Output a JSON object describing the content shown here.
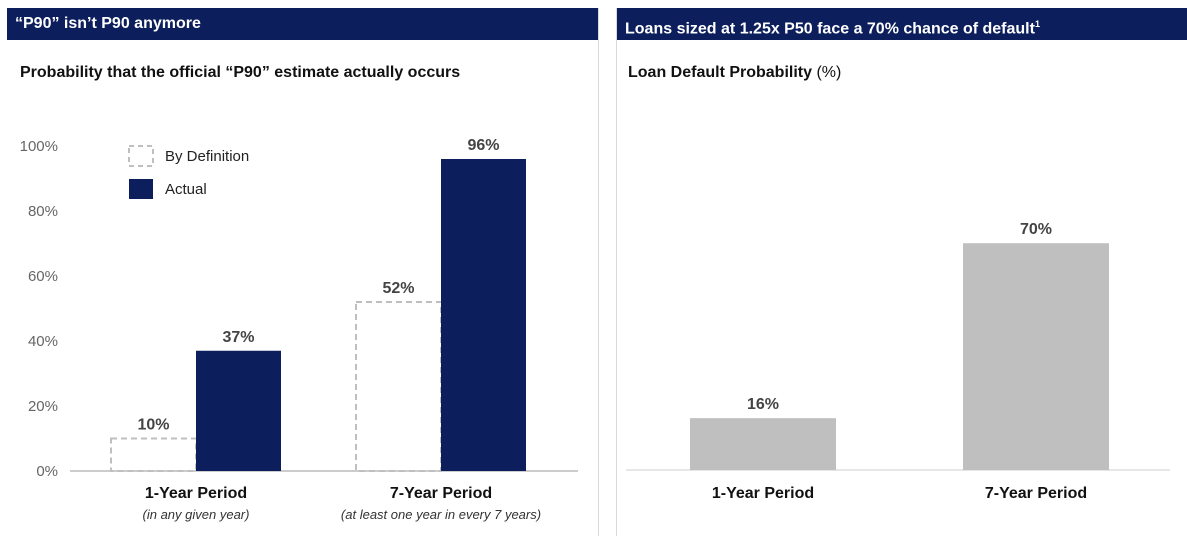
{
  "left_panel": {
    "header": "“P90” isn’t P90 anymore",
    "subtitle": "Probability that the official “P90” estimate actually occurs"
  },
  "right_panel": {
    "header": "Loans sized at 1.25x P50 face a 70% chance of default",
    "header_footnote": "1",
    "subtitle": "Loan Default Probability",
    "subtitle_unit": "(%)"
  },
  "colors": {
    "navy": "#0c1f5c",
    "grey_bar": "#bfbfbf",
    "dashed_outline": "#bfbfbf"
  },
  "chart_data": [
    {
      "type": "bar",
      "categories": [
        "1-Year Period",
        "7-Year Period"
      ],
      "category_notes": [
        "(in any given year)",
        "(at least one year in every 7 years)"
      ],
      "series": [
        {
          "name": "By Definition",
          "values": [
            10,
            52
          ],
          "style": "dashed-outline"
        },
        {
          "name": "Actual",
          "values": [
            37,
            96
          ],
          "style": "solid-navy"
        }
      ],
      "data_labels": [
        [
          "10%",
          "52%"
        ],
        [
          "37%",
          "96%"
        ]
      ],
      "yticks": [
        "0%",
        "20%",
        "40%",
        "60%",
        "80%",
        "100%"
      ],
      "ylim": [
        0,
        100
      ],
      "legend_position": "top-left",
      "grid": false
    },
    {
      "type": "bar",
      "categories": [
        "1-Year Period",
        "7-Year Period"
      ],
      "series": [
        {
          "values": [
            16,
            70
          ]
        }
      ],
      "data_labels": [
        "16%",
        "70%"
      ],
      "ylim": [
        0,
        100
      ],
      "grid": false
    }
  ]
}
